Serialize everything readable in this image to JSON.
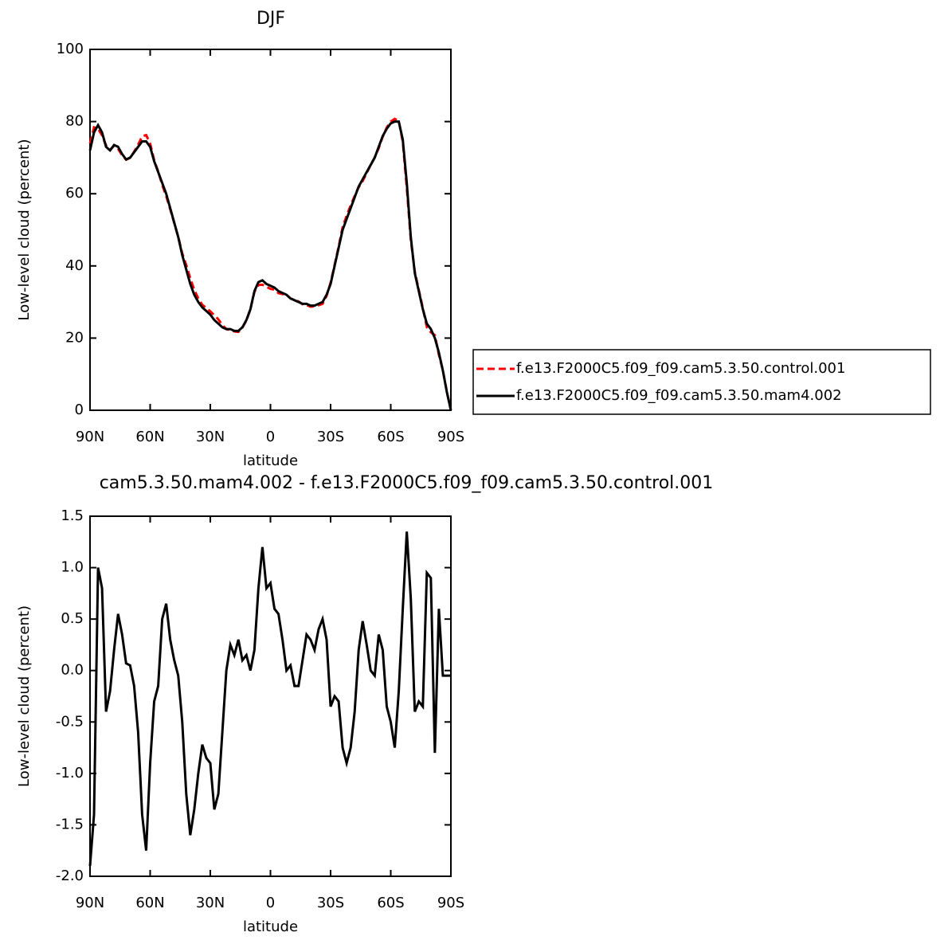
{
  "chart_data": [
    {
      "type": "line",
      "title": "DJF",
      "x_label": "latitude",
      "y_label": "Low-level cloud (percent)",
      "x": [
        90,
        88,
        86,
        84,
        82,
        80,
        78,
        76,
        74,
        72,
        70,
        68,
        66,
        64,
        62,
        60,
        58,
        56,
        54,
        52,
        50,
        48,
        46,
        44,
        42,
        40,
        38,
        36,
        34,
        32,
        30,
        28,
        26,
        24,
        22,
        20,
        18,
        16,
        14,
        12,
        10,
        8,
        6,
        4,
        2,
        0,
        -2,
        -4,
        -6,
        -8,
        -10,
        -12,
        -14,
        -16,
        -18,
        -20,
        -22,
        -24,
        -26,
        -28,
        -30,
        -32,
        -34,
        -36,
        -38,
        -40,
        -42,
        -44,
        -46,
        -48,
        -50,
        -52,
        -54,
        -56,
        -58,
        -60,
        -62,
        -64,
        -66,
        -68,
        -70,
        -72,
        -74,
        -76,
        -78,
        -80,
        -82,
        -84,
        -86,
        -88,
        -90
      ],
      "xlim": [
        90,
        -90
      ],
      "xticks": [
        {
          "value": 90,
          "label": "90N"
        },
        {
          "value": 60,
          "label": "60N"
        },
        {
          "value": 30,
          "label": "30N"
        },
        0,
        {
          "value": -30,
          "label": "30S"
        },
        {
          "value": -60,
          "label": "60S"
        },
        {
          "value": -90,
          "label": "90S"
        }
      ],
      "ylim": [
        0,
        100
      ],
      "yticks": [
        0,
        20,
        40,
        60,
        80,
        100
      ],
      "legend_position": "right",
      "series": [
        {
          "name": "f.e13.F2000C5.f09_f09.cam5.3.50.control.001",
          "color": "#ff0000",
          "line_style": "dashed",
          "values": [
            73.9,
            78.4,
            78,
            76.2,
            73.4,
            72.2,
            73.3,
            72.45,
            70.65,
            69.43,
            69.95,
            71.65,
            73.6,
            75.9,
            76.25,
            73.9,
            69.3,
            66.15,
            62.5,
            59.35,
            55.7,
            51.9,
            48.05,
            43.5,
            40.2,
            36.6,
            33.35,
            31,
            29.22,
            28.35,
            27.4,
            26.35,
            25.2,
            23.6,
            22.5,
            22.25,
            21.85,
            21.7,
            22.9,
            24.85,
            28,
            32.8,
            34.7,
            34.8,
            34.2,
            33.65,
            33.4,
            32.45,
            32.2,
            32,
            30.95,
            30.65,
            30.15,
            29.4,
            29.15,
            28.7,
            28.8,
            29.1,
            29.5,
            31.7,
            35.35,
            40.25,
            45.3,
            50.75,
            53.9,
            56.75,
            59.4,
            61.8,
            63.52,
            65.75,
            68,
            70.05,
            72.65,
            75.8,
            78.35,
            80,
            80.75,
            80.2,
            74.4,
            61.65,
            47.3,
            38.4,
            33.3,
            28.35,
            23.05,
            21.6,
            20.8,
            15.4,
            11.05,
            5.05,
            0.05
          ]
        },
        {
          "name": "f.e13.F2000C5.f09_f09.cam5.3.50.mam4.002",
          "color": "#000000",
          "line_style": "solid",
          "values": [
            72,
            77,
            79,
            77,
            73,
            72,
            73.5,
            73,
            71,
            69.5,
            70,
            71.5,
            73,
            74.5,
            74.5,
            73,
            69,
            66,
            63,
            60,
            56,
            52,
            48,
            43,
            39,
            35,
            32,
            30,
            28.5,
            27.5,
            26.5,
            25,
            24,
            23,
            22.5,
            22.5,
            22,
            22,
            23,
            25,
            28,
            33,
            35.5,
            36,
            35,
            34.5,
            34,
            33,
            32.5,
            32,
            31,
            30.5,
            30,
            29.5,
            29.5,
            29,
            29,
            29.5,
            30,
            32,
            35,
            40,
            45,
            50,
            53,
            56,
            59,
            62,
            64,
            66,
            68,
            70,
            73,
            76,
            78,
            79.5,
            80,
            80,
            75,
            63,
            48,
            38,
            33,
            28,
            24,
            22.5,
            20,
            16,
            11,
            5,
            0
          ]
        }
      ]
    },
    {
      "type": "line",
      "title": "cam5.3.50.mam4.002 - f.e13.F2000C5.f09_f09.cam5.3.50.control.001",
      "x_label": "latitude",
      "y_label": "Low-level cloud (percent)",
      "x": [
        90,
        88,
        86,
        84,
        82,
        80,
        78,
        76,
        74,
        72,
        70,
        68,
        66,
        64,
        62,
        60,
        58,
        56,
        54,
        52,
        50,
        48,
        46,
        44,
        42,
        40,
        38,
        36,
        34,
        32,
        30,
        28,
        26,
        24,
        22,
        20,
        18,
        16,
        14,
        12,
        10,
        8,
        6,
        4,
        2,
        0,
        -2,
        -4,
        -6,
        -8,
        -10,
        -12,
        -14,
        -16,
        -18,
        -20,
        -22,
        -24,
        -26,
        -28,
        -30,
        -32,
        -34,
        -36,
        -38,
        -40,
        -42,
        -44,
        -46,
        -48,
        -50,
        -52,
        -54,
        -56,
        -58,
        -60,
        -62,
        -64,
        -66,
        -68,
        -70,
        -72,
        -74,
        -76,
        -78,
        -80,
        -82,
        -84,
        -86,
        -88,
        -90
      ],
      "xlim": [
        90,
        -90
      ],
      "xticks": [
        {
          "value": 90,
          "label": "90N"
        },
        {
          "value": 60,
          "label": "60N"
        },
        {
          "value": 30,
          "label": "30N"
        },
        0,
        {
          "value": -30,
          "label": "30S"
        },
        {
          "value": -60,
          "label": "60S"
        },
        {
          "value": -90,
          "label": "90S"
        }
      ],
      "ylim": [
        -2,
        1.5
      ],
      "yticks": [
        {
          "value": -2,
          "label": "-2.0"
        },
        -1.5,
        {
          "value": -1,
          "label": "-1.0"
        },
        -0.5,
        {
          "value": 0,
          "label": "0.0"
        },
        0.5,
        {
          "value": 1,
          "label": "1.0"
        },
        1.5
      ],
      "color": "#000000",
      "values": [
        -1.9,
        -1.4,
        1.0,
        0.8,
        -0.4,
        -0.2,
        0.2,
        0.55,
        0.35,
        0.07,
        0.05,
        -0.15,
        -0.6,
        -1.4,
        -1.75,
        -0.9,
        -0.3,
        -0.15,
        0.5,
        0.65,
        0.3,
        0.1,
        -0.05,
        -0.5,
        -1.2,
        -1.6,
        -1.35,
        -1.0,
        -0.72,
        -0.85,
        -0.9,
        -1.35,
        -1.2,
        -0.6,
        0.0,
        0.25,
        0.15,
        0.3,
        0.1,
        0.15,
        0.0,
        0.2,
        0.8,
        1.2,
        0.8,
        0.85,
        0.6,
        0.55,
        0.3,
        0.0,
        0.05,
        -0.15,
        -0.15,
        0.1,
        0.35,
        0.3,
        0.2,
        0.4,
        0.5,
        0.3,
        -0.35,
        -0.25,
        -0.3,
        -0.75,
        -0.9,
        -0.75,
        -0.4,
        0.2,
        0.48,
        0.25,
        0.0,
        -0.05,
        0.35,
        0.2,
        -0.35,
        -0.5,
        -0.75,
        -0.2,
        0.6,
        1.35,
        0.7,
        -0.4,
        -0.3,
        -0.35,
        0.95,
        0.9,
        -0.8,
        0.6,
        -0.05,
        -0.05,
        -0.05
      ]
    }
  ]
}
